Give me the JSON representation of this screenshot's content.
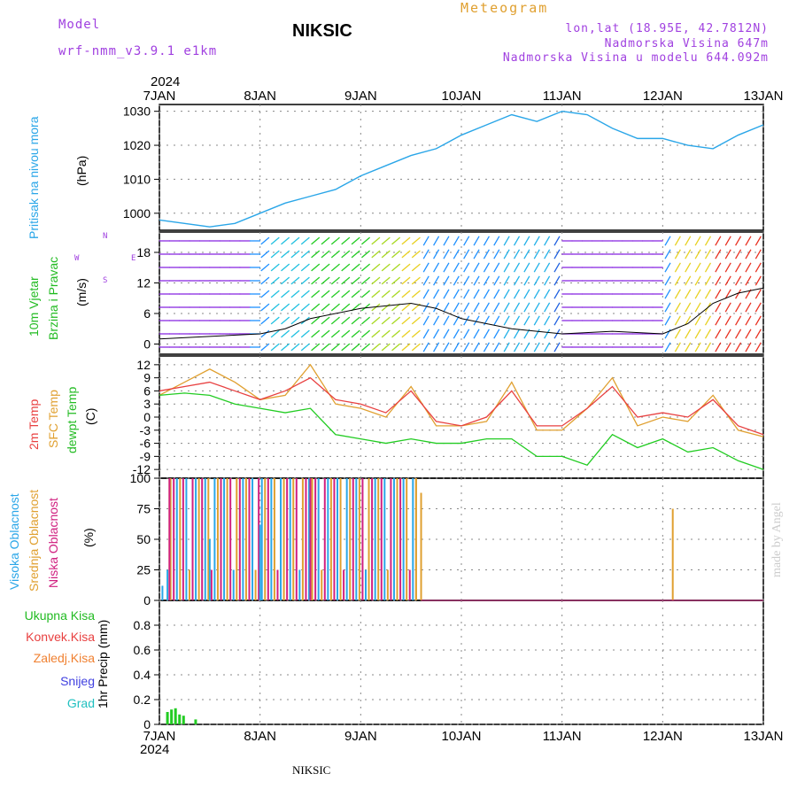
{
  "header": {
    "model_label": "Model",
    "model_name": "wrf-nmm_v3.9.1  e1km",
    "station": "NIKSIC",
    "meteogram": "Meteogram",
    "lonlat": "lon,lat (18.95E, 42.7812N)",
    "altitude": "Nadmorska Visina 647m",
    "model_altitude": "Nadmorska Visina u modelu 644.092m",
    "year_top": "2024",
    "year_bottom": "2024",
    "footer_station": "NIKSIC",
    "credit": "made by Angel"
  },
  "colors": {
    "pressure": "#2aa6e8",
    "wind_label": "#22bb22",
    "temp2m": "#e84040",
    "sfc": "#e0a030",
    "dewpt": "#22cc22",
    "high_cloud": "#2aa6e8",
    "mid_cloud": "#e0a030",
    "low_cloud": "#d02080",
    "purple": "#a040e0"
  },
  "chart_data": [
    {
      "type": "line",
      "panel": "pressure",
      "ylabel_1": "Pritisak na nivou mora",
      "ylabel_2": "(hPa)",
      "x_dates": [
        "7JAN",
        "8JAN",
        "9JAN",
        "10JAN",
        "11JAN",
        "12JAN",
        "13JAN"
      ],
      "ylim": [
        995,
        1032
      ],
      "yticks": [
        1000,
        1010,
        1020,
        1030
      ],
      "x": [
        0,
        0.25,
        0.5,
        0.75,
        1,
        1.25,
        1.5,
        1.75,
        2,
        2.25,
        2.5,
        2.75,
        3,
        3.25,
        3.5,
        3.75,
        4,
        4.25,
        4.5,
        4.75,
        5,
        5.25,
        5.5,
        5.75,
        6
      ],
      "values": [
        998,
        997,
        996,
        997,
        1000,
        1003,
        1005,
        1007,
        1011,
        1014,
        1017,
        1019,
        1023,
        1026,
        1029,
        1027,
        1030,
        1029,
        1025,
        1022,
        1022,
        1020,
        1019,
        1023,
        1026
      ]
    },
    {
      "type": "line",
      "panel": "wind",
      "ylabel_1": "10m Vjetar",
      "ylabel_2": "Brzina i Pravac",
      "ylabel_3": "(m/s)",
      "compass": {
        "n": "N",
        "w": "W",
        "e": "E",
        "s": "S"
      },
      "ylim": [
        -2,
        22
      ],
      "yticks": [
        0,
        6,
        12,
        18
      ],
      "x": [
        0,
        0.5,
        1,
        1.25,
        1.5,
        2,
        2.5,
        2.75,
        3,
        3.5,
        4,
        4.5,
        5,
        5.25,
        5.5,
        5.75,
        6
      ],
      "values": [
        1,
        1.5,
        2,
        3,
        5,
        7,
        8,
        7,
        5,
        3,
        2,
        2.5,
        2,
        4,
        8,
        10,
        11
      ]
    },
    {
      "type": "line",
      "panel": "temperature",
      "ylabel_1": "2m Temp",
      "ylabel_2": "SFC Temp",
      "ylabel_3": "dewpt Temp",
      "ylabel_4": "(C)",
      "ylim": [
        -14,
        14
      ],
      "yticks": [
        12,
        9,
        6,
        3,
        0,
        -3,
        -6,
        -9,
        -12
      ],
      "x": [
        0,
        0.25,
        0.5,
        0.75,
        1,
        1.25,
        1.5,
        1.75,
        2,
        2.25,
        2.5,
        2.75,
        3,
        3.25,
        3.5,
        3.75,
        4,
        4.25,
        4.5,
        4.75,
        5,
        5.25,
        5.5,
        5.75,
        6
      ],
      "series": [
        {
          "name": "2m Temp",
          "values": [
            6,
            7,
            8,
            6,
            4,
            6,
            9,
            4,
            3,
            1,
            6,
            -1,
            -2,
            0,
            6,
            -2,
            -2,
            2,
            7,
            0,
            1,
            0,
            4,
            -2,
            -4
          ]
        },
        {
          "name": "SFC Temp",
          "values": [
            5,
            8,
            11,
            8,
            4,
            5,
            12,
            3,
            2,
            0,
            7,
            -2,
            -2,
            -1,
            8,
            -3,
            -3,
            2,
            9,
            -2,
            0,
            -1,
            5,
            -3,
            -4.5
          ]
        },
        {
          "name": "dewpt Temp",
          "values": [
            5,
            5.5,
            5,
            3,
            2,
            1,
            2,
            -4,
            -5,
            -6,
            -5,
            -6,
            -6,
            -5,
            -5,
            -9,
            -9,
            -11,
            -4,
            -7,
            -5,
            -8,
            -7,
            -10,
            -12
          ]
        }
      ]
    },
    {
      "type": "bar",
      "panel": "clouds",
      "ylabel_1": "Visoka Oblacnost",
      "ylabel_2": "Srednja Oblacnost",
      "ylabel_3": "Niska Oblacnost",
      "ylabel_4": "(%)",
      "ylim": [
        0,
        100
      ],
      "yticks": [
        0,
        25,
        50,
        75,
        100
      ],
      "series": [
        {
          "name": "Visoka Oblacnost",
          "description_x_range": [
            0,
            2.6
          ],
          "values_at": [
            [
              0.03,
              12
            ],
            [
              1.0,
              62
            ],
            [
              0.5,
              50
            ]
          ]
        },
        {
          "name": "Srednja Oblacnost",
          "values_at": [
            [
              0.1,
              100
            ],
            [
              2.55,
              100
            ],
            [
              2.6,
              88
            ],
            [
              5.1,
              75
            ]
          ]
        },
        {
          "name": "Niska Oblacnost",
          "values_at": [
            [
              0.1,
              100
            ],
            [
              1.5,
              100
            ]
          ]
        }
      ]
    },
    {
      "type": "bar",
      "panel": "precip",
      "ylabel_1": "1hr Precip (mm)",
      "legend": [
        "Ukupna Kisa",
        "Konvek.Kisa",
        "Zaledj.Kisa",
        "Snijeg",
        "Grad"
      ],
      "ylim": [
        0,
        1
      ],
      "yticks": [
        0,
        0.2,
        0.4,
        0.6,
        0.8
      ],
      "x": [
        0.08,
        0.12,
        0.16,
        0.2,
        0.24,
        0.36
      ],
      "values": [
        0.1,
        0.12,
        0.13,
        0.08,
        0.07,
        0.04
      ]
    }
  ]
}
